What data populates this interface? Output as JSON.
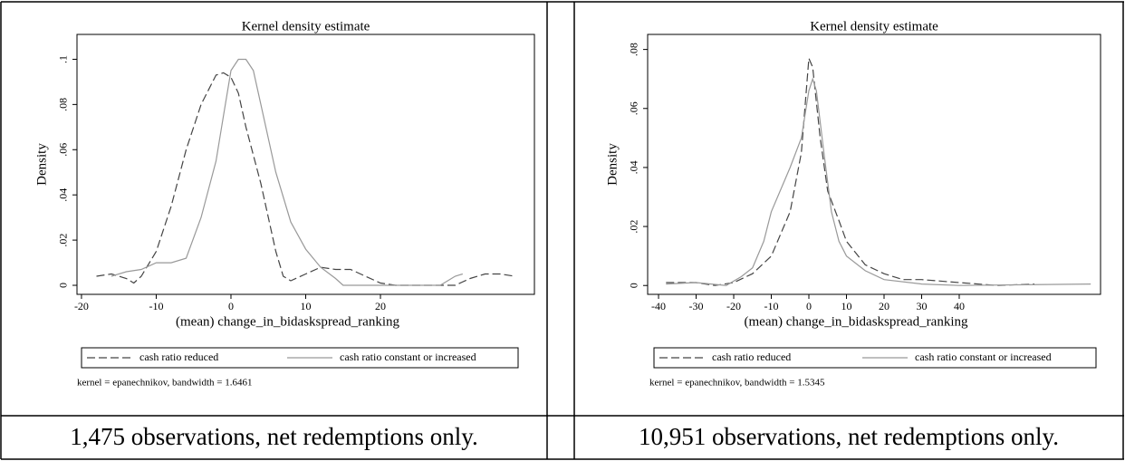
{
  "chart_data": [
    {
      "type": "line",
      "title": "Kernel density estimate",
      "xlabel": "(mean) change_in_bidaskspread_ranking",
      "ylabel": "Density",
      "note": "kernel = epanechnikov, bandwidth = 1.6461",
      "caption": "1,475 observations, net redemptions only.",
      "xlim": [
        -20.6,
        40.6
      ],
      "ylim": [
        -0.004,
        0.111
      ],
      "xticks": [
        -20,
        -10,
        0,
        10,
        20
      ],
      "yticks": [
        0,
        {
          "value": 0.02,
          "label": ".02"
        },
        {
          "value": 0.04,
          "label": ".04"
        },
        {
          "value": 0.06,
          "label": ".06"
        },
        {
          "value": 0.08,
          "label": ".08"
        },
        {
          "value": 0.1,
          "label": ".1"
        }
      ],
      "series": [
        {
          "name": "cash ratio reduced",
          "color": "#444444",
          "dashed": true,
          "x": [
            -18,
            -16,
            -14,
            -13,
            -12,
            -10,
            -8,
            -6,
            -4,
            -2,
            -1,
            0,
            1,
            2,
            4,
            6,
            7,
            8,
            10,
            12,
            14,
            16,
            18,
            20,
            22,
            30,
            32,
            34,
            36,
            38
          ],
          "values": [
            0.004,
            0.005,
            0.003,
            0.001,
            0.004,
            0.015,
            0.035,
            0.06,
            0.08,
            0.093,
            0.094,
            0.092,
            0.085,
            0.07,
            0.045,
            0.015,
            0.004,
            0.002,
            0.005,
            0.008,
            0.007,
            0.007,
            0.004,
            0.001,
            0,
            0,
            0.003,
            0.005,
            0.005,
            0.004
          ]
        },
        {
          "name": "cash ratio constant or increased",
          "color": "#999999",
          "dashed": false,
          "x": [
            -16,
            -14,
            -12,
            -10,
            -8,
            -6,
            -4,
            -2,
            -1,
            0,
            1,
            2,
            3,
            4,
            6,
            8,
            10,
            12,
            14,
            15,
            20,
            28,
            30,
            31
          ],
          "values": [
            0.004,
            0.006,
            0.007,
            0.01,
            0.01,
            0.012,
            0.03,
            0.055,
            0.075,
            0.095,
            0.1,
            0.1,
            0.095,
            0.08,
            0.05,
            0.028,
            0.016,
            0.008,
            0.003,
            0,
            0,
            0,
            0.004,
            0.005
          ]
        }
      ]
    },
    {
      "type": "line",
      "title": "Kernel density estimate",
      "xlabel": "(mean) change_in_bidaskspread_ranking",
      "ylabel": "Density",
      "note": "kernel = epanechnikov, bandwidth = 1.5345",
      "caption": "10,951 observations, net redemptions only.",
      "xlim": [
        -42.9,
        77.6
      ],
      "ylim": [
        -0.003,
        0.0851
      ],
      "xticks": [
        -40,
        -30,
        -20,
        -10,
        0,
        10,
        20,
        30,
        40
      ],
      "yticks": [
        0,
        {
          "value": 0.02,
          "label": ".02"
        },
        {
          "value": 0.04,
          "label": ".04"
        },
        {
          "value": 0.06,
          "label": ".06"
        },
        {
          "value": 0.08,
          "label": ".08"
        }
      ],
      "series": [
        {
          "name": "cash ratio reduced",
          "color": "#444444",
          "dashed": true,
          "x": [
            -38,
            -30,
            -25,
            -20,
            -15,
            -10,
            -5,
            -2,
            0,
            1,
            3,
            5,
            8,
            10,
            15,
            20,
            25,
            30,
            40,
            50,
            60
          ],
          "values": [
            0.001,
            0.001,
            0,
            0.001,
            0.004,
            0.01,
            0.025,
            0.045,
            0.077,
            0.074,
            0.05,
            0.032,
            0.022,
            0.015,
            0.007,
            0.004,
            0.002,
            0.002,
            0.001,
            0,
            0.0005
          ]
        },
        {
          "name": "cash ratio constant or increased",
          "color": "#999999",
          "dashed": false,
          "x": [
            -38,
            -30,
            -22,
            -18,
            -15,
            -12,
            -10,
            -5,
            -2,
            0,
            1,
            2,
            4,
            6,
            8,
            10,
            15,
            20,
            30,
            40,
            75
          ],
          "values": [
            0.0005,
            0.001,
            0,
            0.003,
            0.006,
            0.015,
            0.025,
            0.04,
            0.05,
            0.066,
            0.07,
            0.066,
            0.045,
            0.025,
            0.015,
            0.01,
            0.005,
            0.002,
            0.0005,
            0,
            0.0005
          ]
        }
      ]
    }
  ]
}
